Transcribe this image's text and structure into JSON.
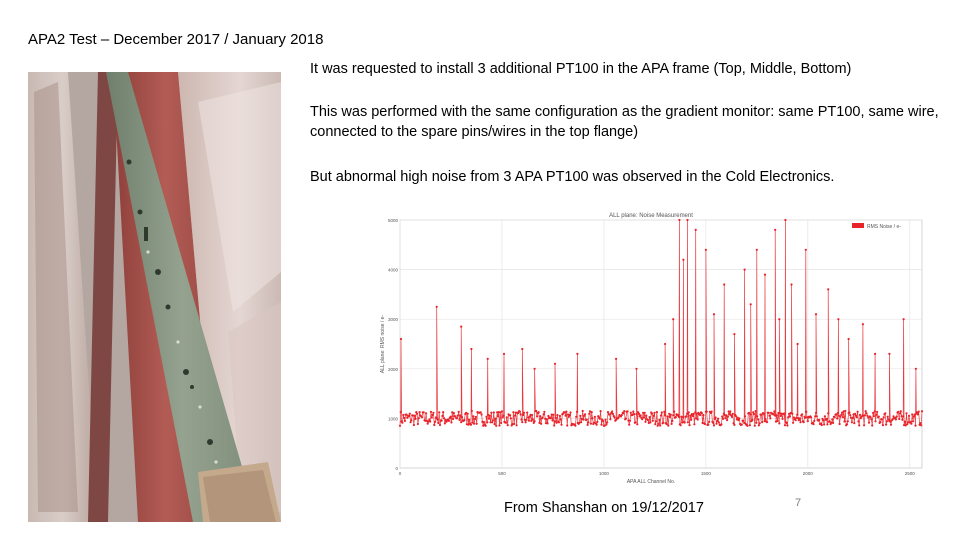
{
  "slide": {
    "title": "APA2 Test – December 2017 / January 2018",
    "paragraph_1": "It was requested to install 3 additional PT100 in the APA frame (Top, Middle, Bottom)",
    "paragraph_2": "This was performed with the same configuration as the gradient monitor: same PT100, same wire, connected to the spare pins/wires in the top flange)",
    "paragraph_3": "But abnormal high noise from 3 APA PT100 was observed in the Cold Electronics.",
    "caption": "From Shanshan on 19/12/2017",
    "page_number": "7"
  },
  "colors": {
    "series": "#e8232a",
    "grid": "#e4e4e4",
    "chart_text": "#555555"
  },
  "chart_data": {
    "type": "line",
    "title": "ALL plane: Noise Measurement",
    "xlabel": "APA ALL Channel No.",
    "ylabel": "ALL plane: RMS noise / e-",
    "xlim": [
      0,
      2560
    ],
    "ylim": [
      0,
      5000
    ],
    "xticks": [
      "0",
      "500",
      "1000",
      "1500",
      "2000",
      "2500"
    ],
    "yticks": [
      "0",
      "1000",
      "2000",
      "3000",
      "4000",
      "5000"
    ],
    "legend_position": "top-right",
    "grid": true,
    "series": [
      {
        "name": "RMS Noise / e-",
        "baseline": 1000,
        "baseline_spread": 150,
        "peaks": [
          {
            "x": 5,
            "y": 2600
          },
          {
            "x": 180,
            "y": 3250
          },
          {
            "x": 300,
            "y": 2850
          },
          {
            "x": 350,
            "y": 2400
          },
          {
            "x": 430,
            "y": 2200
          },
          {
            "x": 510,
            "y": 2300
          },
          {
            "x": 600,
            "y": 2400
          },
          {
            "x": 660,
            "y": 2000
          },
          {
            "x": 760,
            "y": 2100
          },
          {
            "x": 870,
            "y": 2300
          },
          {
            "x": 1060,
            "y": 2200
          },
          {
            "x": 1160,
            "y": 2000
          },
          {
            "x": 1300,
            "y": 2500
          },
          {
            "x": 1340,
            "y": 3000
          },
          {
            "x": 1370,
            "y": 5000
          },
          {
            "x": 1390,
            "y": 4200
          },
          {
            "x": 1410,
            "y": 5000
          },
          {
            "x": 1450,
            "y": 4800
          },
          {
            "x": 1500,
            "y": 4400
          },
          {
            "x": 1540,
            "y": 3100
          },
          {
            "x": 1590,
            "y": 3700
          },
          {
            "x": 1640,
            "y": 2700
          },
          {
            "x": 1690,
            "y": 4000
          },
          {
            "x": 1720,
            "y": 3300
          },
          {
            "x": 1750,
            "y": 4400
          },
          {
            "x": 1790,
            "y": 3900
          },
          {
            "x": 1840,
            "y": 4800
          },
          {
            "x": 1860,
            "y": 3000
          },
          {
            "x": 1890,
            "y": 5000
          },
          {
            "x": 1920,
            "y": 3700
          },
          {
            "x": 1950,
            "y": 2500
          },
          {
            "x": 1990,
            "y": 4400
          },
          {
            "x": 2040,
            "y": 3100
          },
          {
            "x": 2100,
            "y": 3600
          },
          {
            "x": 2150,
            "y": 3000
          },
          {
            "x": 2200,
            "y": 2600
          },
          {
            "x": 2270,
            "y": 2900
          },
          {
            "x": 2330,
            "y": 2300
          },
          {
            "x": 2400,
            "y": 2300
          },
          {
            "x": 2470,
            "y": 3000
          },
          {
            "x": 2530,
            "y": 2000
          }
        ]
      }
    ]
  }
}
